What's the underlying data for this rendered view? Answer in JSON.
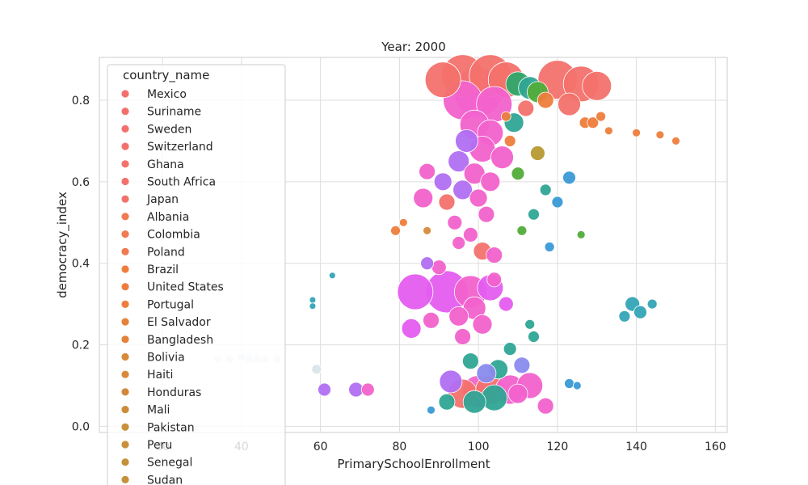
{
  "chart_data": {
    "type": "scatter",
    "title": "Year: 2000",
    "xlabel": "PrimarySchoolEnrollment",
    "ylabel": "democracy_index",
    "xlim": [
      4,
      163
    ],
    "ylim": [
      -0.015,
      0.905
    ],
    "xticks": [
      20,
      40,
      60,
      80,
      100,
      120,
      140,
      160
    ],
    "yticks": [
      0.0,
      0.2,
      0.4,
      0.6,
      0.8
    ],
    "ytick_labels": [
      "0.0",
      "0.2",
      "0.4",
      "0.6",
      "0.8"
    ],
    "grid": true,
    "legend": {
      "title": "country_name",
      "placement": "upper-left",
      "entries": [
        {
          "label": "Mexico",
          "color": "#f3716b"
        },
        {
          "label": "Suriname",
          "color": "#f3716b"
        },
        {
          "label": "Sweden",
          "color": "#f3716b"
        },
        {
          "label": "Switzerland",
          "color": "#f3716b"
        },
        {
          "label": "Ghana",
          "color": "#f3716b"
        },
        {
          "label": "South Africa",
          "color": "#f3716b"
        },
        {
          "label": "Japan",
          "color": "#f3716b"
        },
        {
          "label": "Albania",
          "color": "#f07a52"
        },
        {
          "label": "Colombia",
          "color": "#f07a52"
        },
        {
          "label": "Poland",
          "color": "#f07a52"
        },
        {
          "label": "Brazil",
          "color": "#ee7d3d"
        },
        {
          "label": "United States",
          "color": "#ee7d3d"
        },
        {
          "label": "Portugal",
          "color": "#ee7d3d"
        },
        {
          "label": "El Salvador",
          "color": "#e5823a"
        },
        {
          "label": "Bangladesh",
          "color": "#e5823a"
        },
        {
          "label": "Bolivia",
          "color": "#d88a3a"
        },
        {
          "label": "Haiti",
          "color": "#d88a3a"
        },
        {
          "label": "Honduras",
          "color": "#d0893a"
        },
        {
          "label": "Mali",
          "color": "#cc8c3a"
        },
        {
          "label": "Pakistan",
          "color": "#c8903a"
        },
        {
          "label": "Peru",
          "color": "#c8903a"
        },
        {
          "label": "Senegal",
          "color": "#c4913a"
        },
        {
          "label": "Sudan",
          "color": "#c4913a"
        }
      ]
    },
    "palette": [
      "#f3716b",
      "#ee7d3d",
      "#d88a3a",
      "#b89a33",
      "#8ea833",
      "#52ac3a",
      "#2fa86a",
      "#2fa595",
      "#33a4b6",
      "#3a9ad6",
      "#8a8bed",
      "#b16ff2",
      "#e45df0",
      "#f262cc",
      "#f36a98",
      "#d8e6ea",
      "#e6e2c8"
    ],
    "points": [
      {
        "x": 91,
        "y": 0.85,
        "s": 22,
        "c": 0
      },
      {
        "x": 96,
        "y": 0.86,
        "s": 26,
        "c": 0
      },
      {
        "x": 103,
        "y": 0.86,
        "s": 26,
        "c": 0
      },
      {
        "x": 107,
        "y": 0.85,
        "s": 22,
        "c": 0
      },
      {
        "x": 120,
        "y": 0.85,
        "s": 24,
        "c": 0
      },
      {
        "x": 126,
        "y": 0.84,
        "s": 22,
        "c": 0
      },
      {
        "x": 130,
        "y": 0.835,
        "s": 18,
        "c": 0
      },
      {
        "x": 123,
        "y": 0.79,
        "s": 14,
        "c": 0
      },
      {
        "x": 113,
        "y": 0.83,
        "s": 14,
        "c": 7
      },
      {
        "x": 115,
        "y": 0.82,
        "s": 13,
        "c": 5
      },
      {
        "x": 110,
        "y": 0.84,
        "s": 15,
        "c": 6
      },
      {
        "x": 117,
        "y": 0.8,
        "s": 10,
        "c": 1
      },
      {
        "x": 112,
        "y": 0.78,
        "s": 10,
        "c": 0
      },
      {
        "x": 109,
        "y": 0.745,
        "s": 12,
        "c": 7
      },
      {
        "x": 100,
        "y": 0.82,
        "s": 30,
        "c": 13
      },
      {
        "x": 96,
        "y": 0.8,
        "s": 24,
        "c": 13
      },
      {
        "x": 104,
        "y": 0.79,
        "s": 22,
        "c": 13
      },
      {
        "x": 99,
        "y": 0.74,
        "s": 18,
        "c": 13
      },
      {
        "x": 103,
        "y": 0.72,
        "s": 16,
        "c": 13
      },
      {
        "x": 97,
        "y": 0.7,
        "s": 14,
        "c": 11
      },
      {
        "x": 101,
        "y": 0.68,
        "s": 16,
        "c": 13
      },
      {
        "x": 95,
        "y": 0.65,
        "s": 13,
        "c": 11
      },
      {
        "x": 106,
        "y": 0.66,
        "s": 14,
        "c": 13
      },
      {
        "x": 99,
        "y": 0.62,
        "s": 13,
        "c": 13
      },
      {
        "x": 103,
        "y": 0.6,
        "s": 12,
        "c": 13
      },
      {
        "x": 96,
        "y": 0.58,
        "s": 12,
        "c": 11
      },
      {
        "x": 91,
        "y": 0.6,
        "s": 11,
        "c": 11
      },
      {
        "x": 87,
        "y": 0.625,
        "s": 10,
        "c": 13
      },
      {
        "x": 86,
        "y": 0.56,
        "s": 12,
        "c": 13
      },
      {
        "x": 92,
        "y": 0.55,
        "s": 10,
        "c": 0
      },
      {
        "x": 100,
        "y": 0.56,
        "s": 11,
        "c": 13
      },
      {
        "x": 94,
        "y": 0.5,
        "s": 9,
        "c": 13
      },
      {
        "x": 102,
        "y": 0.52,
        "s": 10,
        "c": 13
      },
      {
        "x": 98,
        "y": 0.47,
        "s": 9,
        "c": 13
      },
      {
        "x": 101,
        "y": 0.43,
        "s": 11,
        "c": 0
      },
      {
        "x": 95,
        "y": 0.45,
        "s": 8,
        "c": 13
      },
      {
        "x": 90,
        "y": 0.39,
        "s": 9,
        "c": 13
      },
      {
        "x": 87,
        "y": 0.4,
        "s": 8,
        "c": 11
      },
      {
        "x": 104,
        "y": 0.42,
        "s": 10,
        "c": 13
      },
      {
        "x": 84,
        "y": 0.33,
        "s": 22,
        "c": 12
      },
      {
        "x": 92,
        "y": 0.33,
        "s": 26,
        "c": 12
      },
      {
        "x": 98,
        "y": 0.33,
        "s": 20,
        "c": 13
      },
      {
        "x": 103,
        "y": 0.34,
        "s": 16,
        "c": 12
      },
      {
        "x": 99,
        "y": 0.29,
        "s": 14,
        "c": 13
      },
      {
        "x": 95,
        "y": 0.27,
        "s": 12,
        "c": 13
      },
      {
        "x": 83,
        "y": 0.24,
        "s": 12,
        "c": 12
      },
      {
        "x": 88,
        "y": 0.26,
        "s": 10,
        "c": 13
      },
      {
        "x": 101,
        "y": 0.25,
        "s": 12,
        "c": 13
      },
      {
        "x": 96,
        "y": 0.22,
        "s": 10,
        "c": 13
      },
      {
        "x": 107,
        "y": 0.3,
        "s": 9,
        "c": 12
      },
      {
        "x": 104,
        "y": 0.36,
        "s": 9,
        "c": 13
      },
      {
        "x": 96,
        "y": 0.08,
        "s": 18,
        "c": 0
      },
      {
        "x": 100,
        "y": 0.085,
        "s": 20,
        "c": 13
      },
      {
        "x": 103,
        "y": 0.09,
        "s": 18,
        "c": 0
      },
      {
        "x": 108,
        "y": 0.09,
        "s": 18,
        "c": 13
      },
      {
        "x": 113,
        "y": 0.1,
        "s": 16,
        "c": 13
      },
      {
        "x": 93,
        "y": 0.11,
        "s": 14,
        "c": 11
      },
      {
        "x": 104,
        "y": 0.07,
        "s": 16,
        "c": 7
      },
      {
        "x": 99,
        "y": 0.06,
        "s": 14,
        "c": 7
      },
      {
        "x": 110,
        "y": 0.08,
        "s": 12,
        "c": 13
      },
      {
        "x": 117,
        "y": 0.05,
        "s": 10,
        "c": 13
      },
      {
        "x": 92,
        "y": 0.06,
        "s": 10,
        "c": 7
      },
      {
        "x": 105,
        "y": 0.14,
        "s": 12,
        "c": 7
      },
      {
        "x": 98,
        "y": 0.16,
        "s": 10,
        "c": 7
      },
      {
        "x": 102,
        "y": 0.13,
        "s": 12,
        "c": 10
      },
      {
        "x": 111,
        "y": 0.15,
        "s": 10,
        "c": 10
      },
      {
        "x": 108,
        "y": 0.19,
        "s": 8,
        "c": 7
      },
      {
        "x": 114,
        "y": 0.22,
        "s": 7,
        "c": 7
      },
      {
        "x": 113,
        "y": 0.25,
        "s": 6,
        "c": 7
      },
      {
        "x": 61,
        "y": 0.09,
        "s": 8,
        "c": 11
      },
      {
        "x": 69,
        "y": 0.09,
        "s": 9,
        "c": 11
      },
      {
        "x": 72,
        "y": 0.09,
        "s": 8,
        "c": 13
      },
      {
        "x": 88,
        "y": 0.04,
        "s": 5,
        "c": 9
      },
      {
        "x": 123,
        "y": 0.105,
        "s": 6,
        "c": 9
      },
      {
        "x": 125,
        "y": 0.1,
        "s": 5,
        "c": 9
      },
      {
        "x": 115,
        "y": 0.67,
        "s": 9,
        "c": 3
      },
      {
        "x": 110,
        "y": 0.62,
        "s": 8,
        "c": 5
      },
      {
        "x": 117,
        "y": 0.58,
        "s": 7,
        "c": 7
      },
      {
        "x": 120,
        "y": 0.55,
        "s": 7,
        "c": 9
      },
      {
        "x": 114,
        "y": 0.52,
        "s": 7,
        "c": 7
      },
      {
        "x": 111,
        "y": 0.48,
        "s": 6,
        "c": 5
      },
      {
        "x": 123,
        "y": 0.61,
        "s": 8,
        "c": 9
      },
      {
        "x": 118,
        "y": 0.44,
        "s": 6,
        "c": 9
      },
      {
        "x": 126,
        "y": 0.47,
        "s": 5,
        "c": 5
      },
      {
        "x": 108,
        "y": 0.7,
        "s": 7,
        "c": 1
      },
      {
        "x": 107,
        "y": 0.76,
        "s": 6,
        "c": 1
      },
      {
        "x": 127,
        "y": 0.745,
        "s": 7,
        "c": 1
      },
      {
        "x": 129,
        "y": 0.745,
        "s": 7,
        "c": 1
      },
      {
        "x": 131,
        "y": 0.76,
        "s": 6,
        "c": 1
      },
      {
        "x": 133,
        "y": 0.725,
        "s": 5,
        "c": 1
      },
      {
        "x": 140,
        "y": 0.72,
        "s": 5,
        "c": 1
      },
      {
        "x": 146,
        "y": 0.715,
        "s": 5,
        "c": 1
      },
      {
        "x": 150,
        "y": 0.7,
        "s": 5,
        "c": 1
      },
      {
        "x": 139,
        "y": 0.3,
        "s": 9,
        "c": 8
      },
      {
        "x": 141,
        "y": 0.28,
        "s": 8,
        "c": 8
      },
      {
        "x": 137,
        "y": 0.27,
        "s": 7,
        "c": 8
      },
      {
        "x": 144,
        "y": 0.3,
        "s": 6,
        "c": 8
      },
      {
        "x": 34,
        "y": 0.165,
        "s": 5,
        "c": 15
      },
      {
        "x": 37,
        "y": 0.165,
        "s": 5,
        "c": 15
      },
      {
        "x": 40,
        "y": 0.17,
        "s": 5,
        "c": 15
      },
      {
        "x": 42,
        "y": 0.165,
        "s": 5,
        "c": 15
      },
      {
        "x": 44,
        "y": 0.165,
        "s": 5,
        "c": 15
      },
      {
        "x": 46,
        "y": 0.165,
        "s": 5,
        "c": 15
      },
      {
        "x": 49,
        "y": 0.165,
        "s": 5,
        "c": 15
      },
      {
        "x": 59,
        "y": 0.14,
        "s": 6,
        "c": 15
      },
      {
        "x": 58,
        "y": 0.31,
        "s": 4,
        "c": 8
      },
      {
        "x": 58,
        "y": 0.295,
        "s": 4,
        "c": 8
      },
      {
        "x": 63,
        "y": 0.37,
        "s": 4,
        "c": 8
      },
      {
        "x": 87,
        "y": 0.48,
        "s": 5,
        "c": 2
      },
      {
        "x": 79,
        "y": 0.48,
        "s": 6,
        "c": 1
      },
      {
        "x": 81,
        "y": 0.5,
        "s": 5,
        "c": 1
      }
    ]
  }
}
